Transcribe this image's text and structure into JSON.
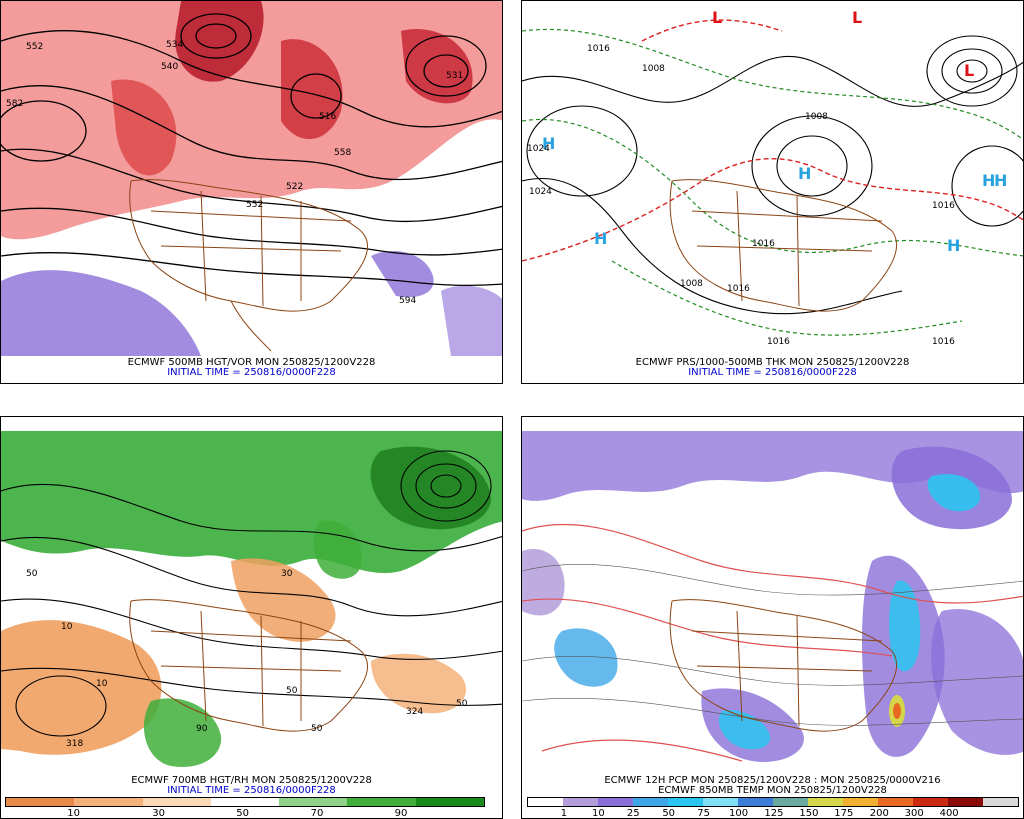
{
  "panels": [
    {
      "caption": "ECMWF 500MB HGT/VOR MON 250825/1200V228",
      "initial": "INITIAL TIME = 250816/0000F228",
      "contour_labels": [
        "552",
        "540",
        "534",
        "531",
        "516",
        "522",
        "558",
        "552",
        "582",
        "594"
      ]
    },
    {
      "caption": "ECMWF PRS/1000-500MB THK MON 250825/1200V228",
      "initial": "INITIAL TIME = 250816/0000F228",
      "contour_labels": [
        "1016",
        "1008",
        "1024",
        "1024",
        "1016",
        "1008",
        "1016",
        "1008",
        "1016",
        "1016",
        "1016"
      ],
      "highs": [
        "H",
        "H",
        "H",
        "H",
        "H",
        "H"
      ],
      "lows": [
        "L",
        "L",
        "L"
      ]
    },
    {
      "caption": "ECMWF 700MB HGT/RH MON 250825/1200V228",
      "initial": "INITIAL TIME = 250816/0000F228",
      "contour_labels": [
        "50",
        "30",
        "10",
        "10",
        "50",
        "318",
        "324",
        "50",
        "90",
        "50"
      ],
      "colorbar": {
        "colors": [
          "#e8884a",
          "#f4b27a",
          "#f9d9b6",
          "#ffffff",
          "#8fd38a",
          "#3fae3a",
          "#1a8a1a"
        ],
        "ticks": [
          "10",
          "30",
          "50",
          "70",
          "90"
        ]
      }
    },
    {
      "caption": "ECMWF 12H PCP MON 250825/1200V228 : MON 250825/0000V216",
      "initial": "ECMWF 850MB TEMP MON 250825/1200V228",
      "colorbar": {
        "colors": [
          "#ffffff",
          "#b39ddb",
          "#8a6fd8",
          "#3fa7e8",
          "#2cc4f0",
          "#7fe0f5",
          "#3d7dd8",
          "#6aa8a0",
          "#d6d64a",
          "#f0b030",
          "#e86a20",
          "#cc2a10",
          "#8a0a0a",
          "#d9d9d9"
        ],
        "ticks": [
          "1",
          "10",
          "25",
          "50",
          "75",
          "100",
          "125",
          "150",
          "175",
          "200",
          "300",
          "400"
        ]
      }
    }
  ]
}
